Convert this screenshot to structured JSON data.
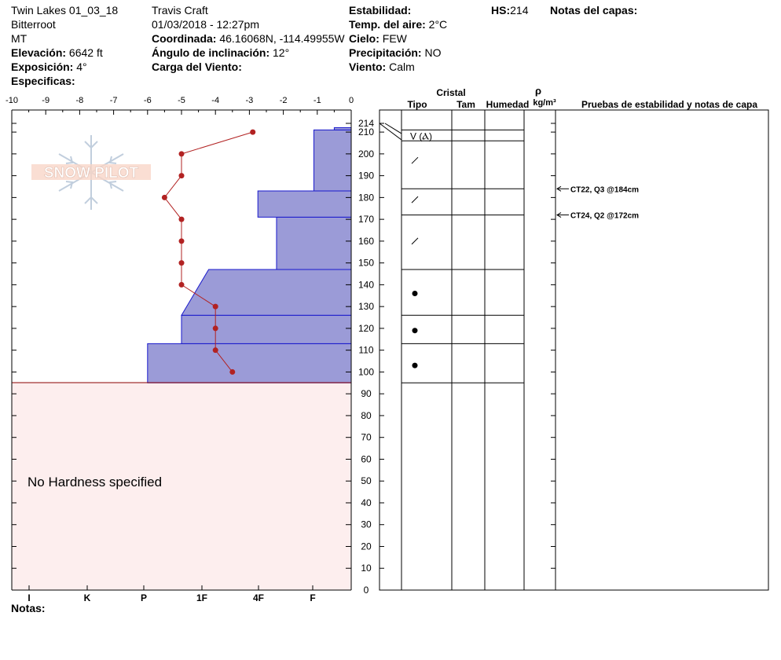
{
  "header": {
    "col1": {
      "site": "Twin Lakes 01_03_18",
      "range": "Bitterroot",
      "state": "MT",
      "elev_label": "Elevación:",
      "elev_value": "6642 ft",
      "aspect_label": "Exposición:",
      "aspect_value": "4°",
      "specifics_label": "Especificas:"
    },
    "col2": {
      "observer": "Travis  Craft",
      "datetime": "01/03/2018 - 12:27pm",
      "coord_label": "Coordinada:",
      "coord_value": "46.16068N, -114.49955W",
      "incline_label": "Ángulo de inclinación:",
      "incline_value": "12°",
      "wind_load_label": "Carga del Viento:"
    },
    "col3": {
      "stability_label": "Estabilidad:",
      "air_temp_label": "Temp. del aire:",
      "air_temp_value": "2°C",
      "sky_label": "Cielo:",
      "sky_value": "FEW",
      "precip_label": "Precipitación:",
      "precip_value": "NO",
      "wind_label": "Viento:",
      "wind_value": "Calm"
    },
    "hs_label": "HS:",
    "hs_value": "214",
    "notes_layers_label": "Notas del capas:"
  },
  "logo_text": "SNOW PILOT",
  "no_hardness_text": "No Hardness specified",
  "notes_label": "Notas:",
  "table_headers": {
    "crystal": "Cristal",
    "type": "Tipo",
    "size": "Tam",
    "moisture": "Humedad",
    "rho": "ρ",
    "density_unit": "kg/m³",
    "tests": "Pruebas de estabilidad y notas de capa"
  },
  "colors": {
    "hardness_fill": "#9b9bd7",
    "hardness_stroke": "#1a1acc",
    "temp_line": "#b22222",
    "no_hardness_bg": "#fdeeee",
    "snow_surface_line": "#8b0000"
  },
  "chart_data": {
    "type": "snow_profile",
    "temperature_axis": {
      "ticks": [
        "-10",
        "-9",
        "-8",
        "-7",
        "-6",
        "-5",
        "-4",
        "-3",
        "-2",
        "-1",
        "0"
      ],
      "range": [
        -10,
        0
      ]
    },
    "height_axis": {
      "range": [
        0,
        214
      ],
      "ticks": [
        "0",
        "10",
        "20",
        "30",
        "40",
        "50",
        "60",
        "70",
        "80",
        "90",
        "100",
        "110",
        "120",
        "130",
        "140",
        "150",
        "160",
        "170",
        "180",
        "190",
        "200",
        "210",
        "214"
      ]
    },
    "hardness_axis": {
      "labels": [
        "I",
        "K",
        "P",
        "1F",
        "4F",
        "F"
      ]
    },
    "hardness_layers": [
      {
        "bottom": 95,
        "top": 113,
        "temp_equiv_left": -6.0
      },
      {
        "bottom": 113,
        "top": 126,
        "temp_equiv_left": -5.0
      },
      {
        "bottom": 126,
        "top": 147,
        "temp_equiv_left": -5.0,
        "temp_equiv_left_top": -4.2
      },
      {
        "bottom": 147,
        "top": 171,
        "temp_equiv_left": -2.2
      },
      {
        "bottom": 171,
        "top": 183,
        "temp_equiv_left": -2.75
      },
      {
        "bottom": 183,
        "top": 211,
        "temp_equiv_left": -1.1
      },
      {
        "bottom": 211,
        "top": 212,
        "temp_equiv_left": -0.5
      }
    ],
    "temperature_profile": [
      {
        "height": 210,
        "temp": -2.9
      },
      {
        "height": 200,
        "temp": -5.0
      },
      {
        "height": 190,
        "temp": -5.0
      },
      {
        "height": 180,
        "temp": -5.5
      },
      {
        "height": 170,
        "temp": -5.0
      },
      {
        "height": 160,
        "temp": -5.0
      },
      {
        "height": 150,
        "temp": -5.0
      },
      {
        "height": 140,
        "temp": -5.0
      },
      {
        "height": 130,
        "temp": -4.0
      },
      {
        "height": 120,
        "temp": -4.0
      },
      {
        "height": 110,
        "temp": -4.0
      },
      {
        "height": 100,
        "temp": -3.5
      }
    ],
    "layer_boundaries": [
      211,
      206,
      184,
      172,
      147,
      126,
      113,
      95
    ],
    "crystal_symbols": [
      {
        "height": 208,
        "symbol": "V (Ⲁ)"
      },
      {
        "height": 197,
        "symbol": "/"
      },
      {
        "height": 179,
        "symbol": "/"
      },
      {
        "height": 160,
        "symbol": "/"
      },
      {
        "height": 136,
        "symbol": "●"
      },
      {
        "height": 119,
        "symbol": "●"
      },
      {
        "height": 103,
        "symbol": "●"
      }
    ],
    "stability_tests": [
      {
        "height": 184,
        "text": "CT22, Q3 @184cm"
      },
      {
        "height": 172,
        "text": "CT24, Q2 @172cm"
      }
    ]
  }
}
